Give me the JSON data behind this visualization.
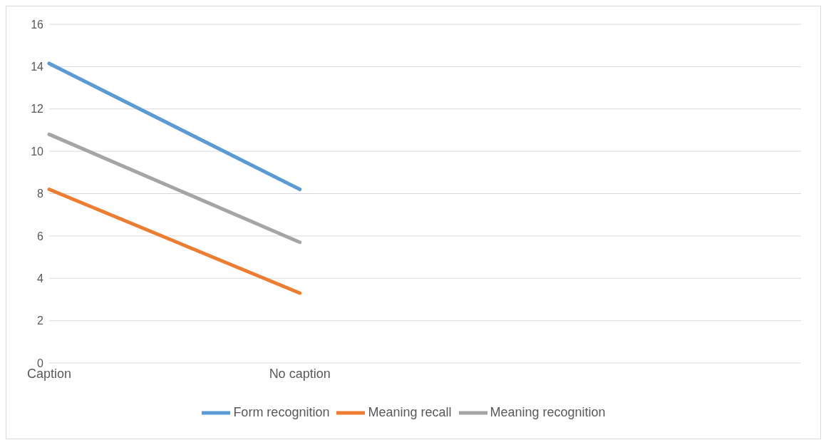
{
  "chart_data": {
    "type": "line",
    "categories": [
      "Caption",
      "No caption",
      null,
      null
    ],
    "series": [
      {
        "name": "Form recognition",
        "color": "#5b9bd5",
        "values": [
          14.15,
          8.2,
          null,
          null
        ]
      },
      {
        "name": "Meaning recall",
        "color": "#ed7d31",
        "values": [
          8.2,
          3.3,
          null,
          null
        ]
      },
      {
        "name": "Meaning recognition",
        "color": "#a5a5a5",
        "values": [
          10.8,
          5.7,
          null,
          null
        ]
      }
    ],
    "ylim": [
      0,
      16
    ],
    "yticks": [
      0,
      2,
      4,
      6,
      8,
      10,
      12,
      14,
      16
    ],
    "grid": "y",
    "legend": "bottom",
    "marker": "none",
    "line_style": "solid"
  }
}
